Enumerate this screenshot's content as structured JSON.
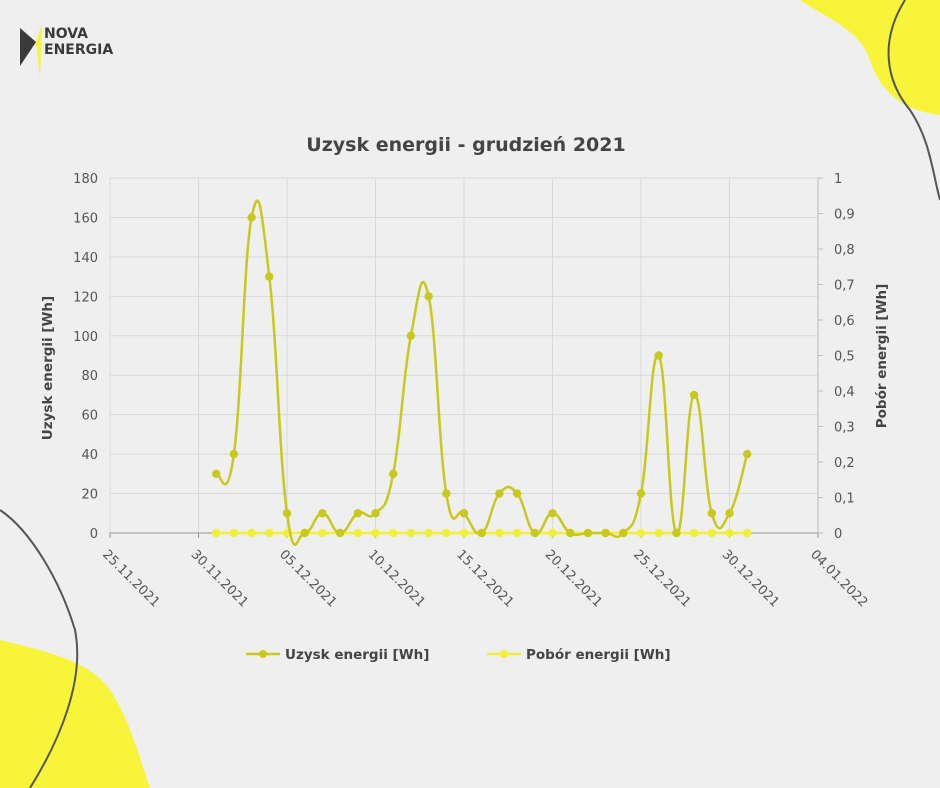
{
  "logo": {
    "line1": "NOVA",
    "line2": "ENERGIA"
  },
  "colors": {
    "series1": "#c8c81e",
    "series2": "#f0f03c",
    "grid": "#d9d9d9",
    "blob": "#f7f43a"
  },
  "chart_data": {
    "type": "line",
    "title": "Uzysk energii - grudzień 2021",
    "ylabel": "Uzysk energii [Wh]",
    "y2label": "Pobór energii [Wh]",
    "ylim": [
      0,
      180
    ],
    "y2lim": [
      0,
      1
    ],
    "yticks": [
      "0",
      "20",
      "40",
      "60",
      "80",
      "100",
      "120",
      "140",
      "160",
      "180"
    ],
    "y2ticks": [
      "0",
      "0,1",
      "0,2",
      "0,3",
      "0,4",
      "0,5",
      "0,6",
      "0,7",
      "0,8",
      "0,9",
      "1"
    ],
    "xticks": [
      "25.11.2021",
      "30.11.2021",
      "05.12.2021",
      "10.12.2021",
      "15.12.2021",
      "20.12.2021",
      "25.12.2021",
      "30.12.2021",
      "04.01.2022"
    ],
    "grid": true,
    "legend_position": "bottom",
    "series": [
      {
        "name": "Uzysk energii [Wh]",
        "axis": "left",
        "x": [
          "2021-12-01",
          "2021-12-02",
          "2021-12-03",
          "2021-12-04",
          "2021-12-05",
          "2021-12-06",
          "2021-12-07",
          "2021-12-08",
          "2021-12-09",
          "2021-12-10",
          "2021-12-11",
          "2021-12-12",
          "2021-12-13",
          "2021-12-14",
          "2021-12-15",
          "2021-12-16",
          "2021-12-17",
          "2021-12-18",
          "2021-12-19",
          "2021-12-20",
          "2021-12-21",
          "2021-12-22",
          "2021-12-23",
          "2021-12-24",
          "2021-12-25",
          "2021-12-26",
          "2021-12-27",
          "2021-12-28",
          "2021-12-29",
          "2021-12-30",
          "2021-12-31"
        ],
        "values": [
          30,
          40,
          160,
          130,
          10,
          0,
          10,
          0,
          10,
          10,
          30,
          100,
          120,
          20,
          10,
          0,
          20,
          20,
          0,
          10,
          0,
          0,
          0,
          0,
          20,
          90,
          0,
          70,
          10,
          10,
          40
        ]
      },
      {
        "name": "Pobór energii [Wh]",
        "axis": "right",
        "x": [
          "2021-12-01",
          "2021-12-02",
          "2021-12-03",
          "2021-12-04",
          "2021-12-05",
          "2021-12-06",
          "2021-12-07",
          "2021-12-08",
          "2021-12-09",
          "2021-12-10",
          "2021-12-11",
          "2021-12-12",
          "2021-12-13",
          "2021-12-14",
          "2021-12-15",
          "2021-12-16",
          "2021-12-17",
          "2021-12-18",
          "2021-12-19",
          "2021-12-20",
          "2021-12-21",
          "2021-12-22",
          "2021-12-23",
          "2021-12-24",
          "2021-12-25",
          "2021-12-26",
          "2021-12-27",
          "2021-12-28",
          "2021-12-29",
          "2021-12-30",
          "2021-12-31"
        ],
        "values": [
          0,
          0,
          0,
          0,
          0,
          0,
          0,
          0,
          0,
          0,
          0,
          0,
          0,
          0,
          0,
          0,
          0,
          0,
          0,
          0,
          0,
          0,
          0,
          0,
          0,
          0,
          0,
          0,
          0,
          0,
          0
        ]
      }
    ]
  }
}
